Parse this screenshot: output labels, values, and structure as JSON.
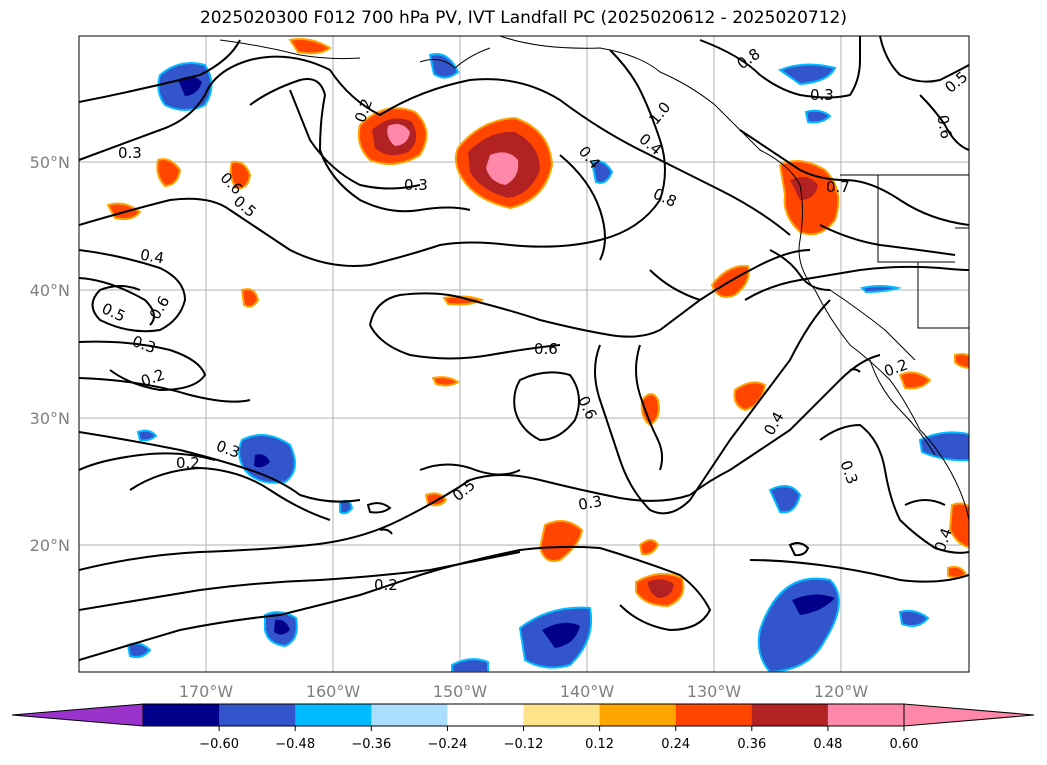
{
  "title": "2025020300 F012 700 hPa PV, IVT Landfall PC (2025020612 - 2025020712)",
  "lat_labels": [
    "50°N",
    "40°N",
    "30°N",
    "20°N"
  ],
  "lon_labels": [
    "170°W",
    "160°W",
    "150°W",
    "140°W",
    "130°W",
    "120°W"
  ],
  "contour_labels": [
    "0.3",
    "0.6",
    "0.5",
    "0.2",
    "0.3",
    "0.4",
    "0.8",
    "1.0",
    "0.8",
    "0.7",
    "0.4",
    "0.6",
    "0.5",
    "0.3",
    "0.6",
    "0.2",
    "0.4",
    "0.5",
    "0.6",
    "0.6",
    "0.3",
    "0.2",
    "0.3",
    "0.2",
    "0.5",
    "0.3",
    "0.2",
    "0.4",
    "0.3",
    "0.4"
  ],
  "colorbar": {
    "ticks": [
      "−0.60",
      "−0.48",
      "−0.36",
      "−0.24",
      "−0.12",
      "0.12",
      "0.24",
      "0.36",
      "0.48",
      "0.60"
    ],
    "colors": {
      "under": "#9933cc",
      "bins": [
        "#00008b",
        "#3355cc",
        "#00bbff",
        "#aaddff",
        "#ffffff",
        "#ffe38a",
        "#ffa500",
        "#ff4500",
        "#b22222",
        "#ff88aa"
      ],
      "over": "#ff88aa"
    }
  }
}
